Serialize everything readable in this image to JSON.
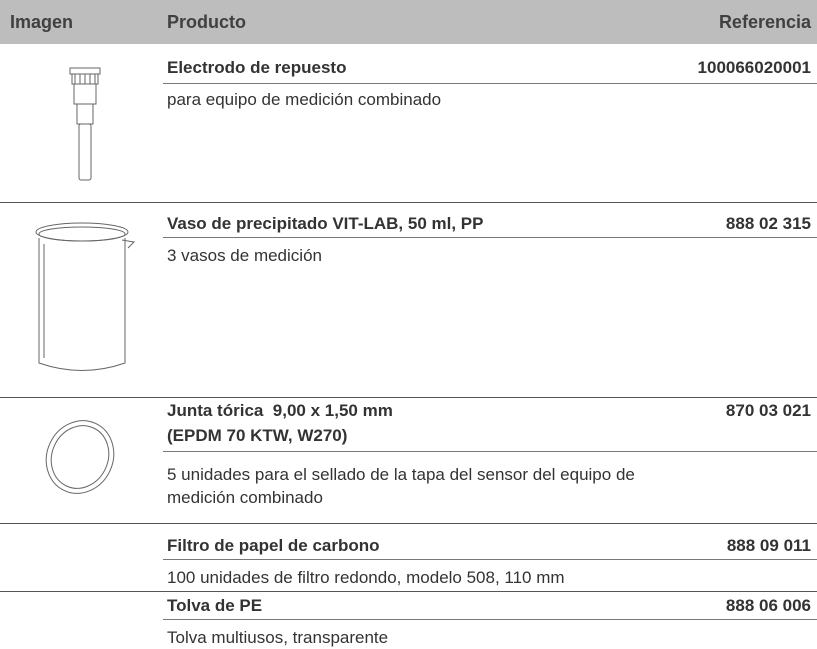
{
  "header": {
    "image": "Imagen",
    "product": "Producto",
    "reference": "Referencia"
  },
  "rows": [
    {
      "title": [
        "Electrodo de repuesto"
      ],
      "reference": "100066020001",
      "description": [
        "para equipo de medición combinado"
      ]
    },
    {
      "title": [
        "Vaso de precipitado VIT-LAB, 50 ml, PP"
      ],
      "reference": "888 02 315",
      "description": [
        "3 vasos de medición"
      ]
    },
    {
      "title": [
        "Junta tórica  9,00 x 1,50 mm",
        "(EPDM 70 KTW, W270)"
      ],
      "reference": "870 03 021",
      "description": [
        "5 unidades para el sellado de la tapa del sensor del equipo de",
        "medición combinado"
      ]
    },
    {
      "title": [
        "Filtro de papel de carbono"
      ],
      "reference": "888 09 011",
      "description": [
        "100 unidades de filtro redondo, modelo 508, 110 mm"
      ]
    },
    {
      "title": [
        "Tolva de PE"
      ],
      "reference": "888 06 006",
      "description": [
        "Tolva multiusos, transparente"
      ]
    }
  ]
}
